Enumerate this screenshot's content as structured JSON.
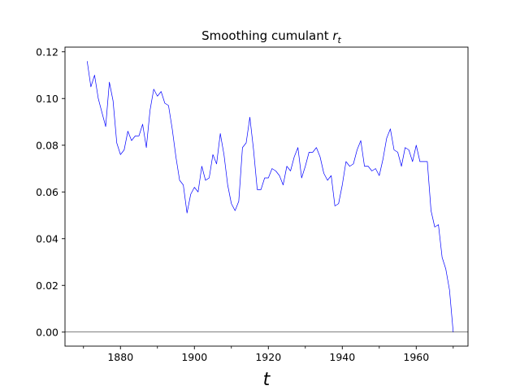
{
  "chart_data": {
    "type": "line",
    "title": "Smoothing cumulant ",
    "title_symbol": "r",
    "title_subscript": "t",
    "xlabel": "t",
    "ylabel": "",
    "xlim": [
      1865,
      1974
    ],
    "ylim": [
      -0.006,
      0.122
    ],
    "xticks": [
      1880,
      1900,
      1920,
      1940,
      1960
    ],
    "xticks_minor": [
      1870,
      1890,
      1910,
      1930,
      1950,
      1970
    ],
    "yticks": [
      0.0,
      0.02,
      0.04,
      0.06,
      0.08,
      0.1,
      0.12
    ],
    "ytick_labels": [
      "0.00",
      "0.02",
      "0.04",
      "0.06",
      "0.08",
      "0.10",
      "0.12"
    ],
    "grid": false,
    "legend": "none",
    "reference_line": {
      "y": 0,
      "color": "#000000"
    },
    "series": [
      {
        "color": "#0000ff",
        "x": [
          1871,
          1872,
          1873,
          1874,
          1875,
          1876,
          1877,
          1878,
          1879,
          1880,
          1881,
          1882,
          1883,
          1884,
          1885,
          1886,
          1887,
          1888,
          1889,
          1890,
          1891,
          1892,
          1893,
          1894,
          1895,
          1896,
          1897,
          1898,
          1899,
          1900,
          1901,
          1902,
          1903,
          1904,
          1905,
          1906,
          1907,
          1908,
          1909,
          1910,
          1911,
          1912,
          1913,
          1914,
          1915,
          1916,
          1917,
          1918,
          1919,
          1920,
          1921,
          1922,
          1923,
          1924,
          1925,
          1926,
          1927,
          1928,
          1929,
          1930,
          1931,
          1932,
          1933,
          1934,
          1935,
          1936,
          1937,
          1938,
          1939,
          1940,
          1941,
          1942,
          1943,
          1944,
          1945,
          1946,
          1947,
          1948,
          1949,
          1950,
          1951,
          1952,
          1953,
          1954,
          1955,
          1956,
          1957,
          1958,
          1959,
          1960,
          1961,
          1962,
          1963,
          1964,
          1965,
          1966,
          1967,
          1968,
          1969,
          1970
        ],
        "y": [
          0.116,
          0.105,
          0.11,
          0.1,
          0.094,
          0.088,
          0.107,
          0.099,
          0.081,
          0.076,
          0.078,
          0.086,
          0.082,
          0.084,
          0.084,
          0.089,
          0.079,
          0.095,
          0.104,
          0.101,
          0.103,
          0.098,
          0.097,
          0.087,
          0.075,
          0.065,
          0.063,
          0.051,
          0.059,
          0.062,
          0.06,
          0.071,
          0.065,
          0.066,
          0.076,
          0.072,
          0.085,
          0.076,
          0.063,
          0.055,
          0.052,
          0.056,
          0.079,
          0.081,
          0.092,
          0.078,
          0.061,
          0.061,
          0.066,
          0.066,
          0.07,
          0.069,
          0.067,
          0.063,
          0.071,
          0.069,
          0.075,
          0.079,
          0.066,
          0.071,
          0.077,
          0.077,
          0.079,
          0.075,
          0.068,
          0.065,
          0.067,
          0.054,
          0.055,
          0.063,
          0.073,
          0.071,
          0.072,
          0.078,
          0.082,
          0.071,
          0.071,
          0.069,
          0.07,
          0.067,
          0.074,
          0.083,
          0.087,
          0.078,
          0.077,
          0.071,
          0.079,
          0.078,
          0.073,
          0.08,
          0.073,
          0.073,
          0.073,
          0.052,
          0.045,
          0.046,
          0.032,
          0.027,
          0.018,
          0.0
        ]
      }
    ]
  }
}
